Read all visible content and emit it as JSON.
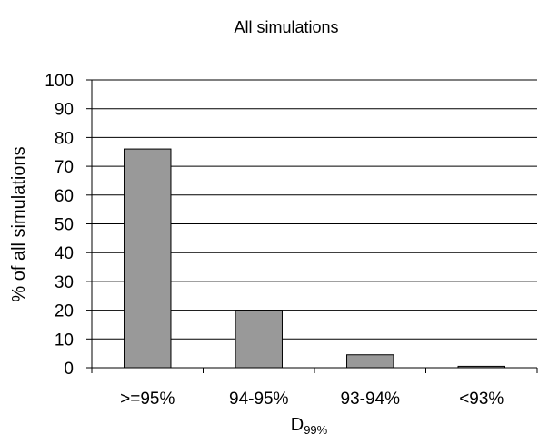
{
  "chart_data": {
    "type": "bar",
    "title": "All simulations",
    "ylabel": "% of all simulations",
    "xlabel": "D",
    "xlabel_subscript": "99%",
    "categories": [
      ">=95%",
      "94-95%",
      "93-94%",
      "<93%"
    ],
    "values": [
      76,
      20,
      4.5,
      0.5
    ],
    "ylim": [
      0,
      100
    ],
    "yticks": [
      "0",
      "10",
      "20",
      "30",
      "40",
      "50",
      "60",
      "70",
      "80",
      "90",
      "100"
    ],
    "grid": "horizontal",
    "legend": "none",
    "bar_color": "#999999",
    "bar_edge_color": "#000000"
  }
}
